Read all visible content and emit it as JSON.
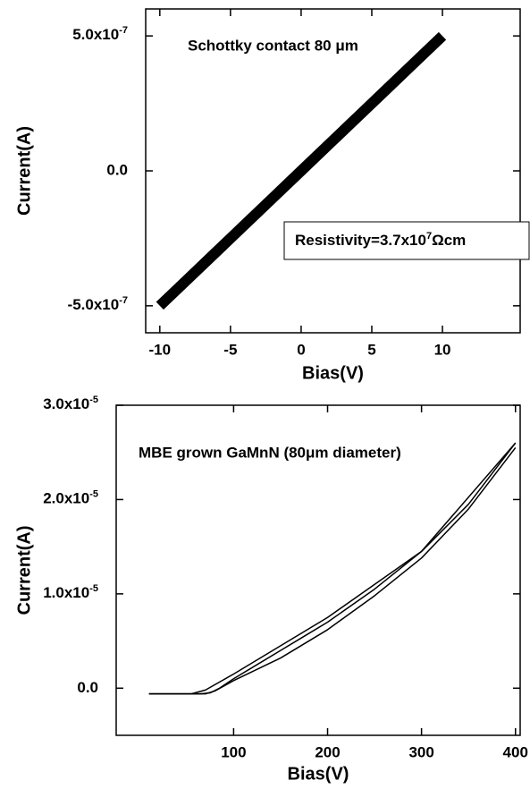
{
  "chart_data": [
    {
      "type": "line",
      "x_label": "Bias(V)",
      "y_label": "Current(A)",
      "annotations": [
        "Schottky contact 80 μm",
        "Resistivity=3.7x107Ωcm"
      ],
      "xlim": [
        -11,
        15.5
      ],
      "xticks": [
        -10,
        -5,
        0,
        5,
        10
      ],
      "ylim": [
        -6e-07,
        6e-07
      ],
      "yticks": [
        {
          "value": -5e-07,
          "label": "-5.0x10-7"
        },
        {
          "value": 0,
          "label": "0.0"
        },
        {
          "value": 5e-07,
          "label": "5.0x10-7"
        }
      ],
      "series": [
        {
          "color": "#000000",
          "x": [
            -10,
            -8,
            -6,
            -4,
            -2,
            0,
            2,
            4,
            6,
            8,
            10
          ],
          "values": [
            -5e-07,
            -4e-07,
            -3e-07,
            -2e-07,
            -1e-07,
            0,
            1e-07,
            2e-07,
            3e-07,
            4e-07,
            5e-07
          ]
        }
      ]
    },
    {
      "type": "line",
      "x_label": "Bias(V)",
      "y_label": "Current(A)",
      "annotations": [
        "MBE grown GaMnN (80μm diameter)"
      ],
      "xlim": [
        -25,
        405
      ],
      "xticks": [
        100,
        200,
        300,
        400
      ],
      "ylim": [
        -5e-06,
        3e-05
      ],
      "yticks": [
        {
          "value": 0,
          "label": "0.0"
        },
        {
          "value": 1e-05,
          "label": "1.0x10-5"
        },
        {
          "value": 2e-05,
          "label": "2.0x10-5"
        },
        {
          "value": 3e-05,
          "label": "3.0x10-5"
        }
      ],
      "series": [
        {
          "color": "#000000",
          "x": [
            10,
            30,
            50,
            65,
            75,
            85,
            100,
            125,
            150,
            175,
            200,
            250,
            300,
            350,
            400
          ],
          "values": [
            -6e-07,
            -6e-07,
            -6e-07,
            -6e-07,
            -5e-07,
            0,
            1e-06,
            2.5e-06,
            4e-06,
            5.5e-06,
            7e-06,
            1.05e-05,
            1.45e-05,
            1.95e-05,
            2.6e-05
          ]
        },
        {
          "color": "#000000",
          "x": [
            400,
            350,
            300,
            250,
            200,
            150,
            100,
            80,
            70,
            50,
            10
          ],
          "values": [
            2.55e-05,
            1.9e-05,
            1.38e-05,
            9.8e-06,
            6.2e-06,
            3.2e-06,
            8e-07,
            -3e-07,
            -6e-07,
            -6e-07,
            -6e-07
          ]
        },
        {
          "color": "#000000",
          "x": [
            10,
            55,
            70,
            100,
            150,
            200,
            300,
            400
          ],
          "values": [
            -6e-07,
            -6e-07,
            -2e-07,
            1.5e-06,
            4.5e-06,
            7.5e-06,
            1.45e-05,
            2.6e-05
          ]
        }
      ]
    }
  ]
}
